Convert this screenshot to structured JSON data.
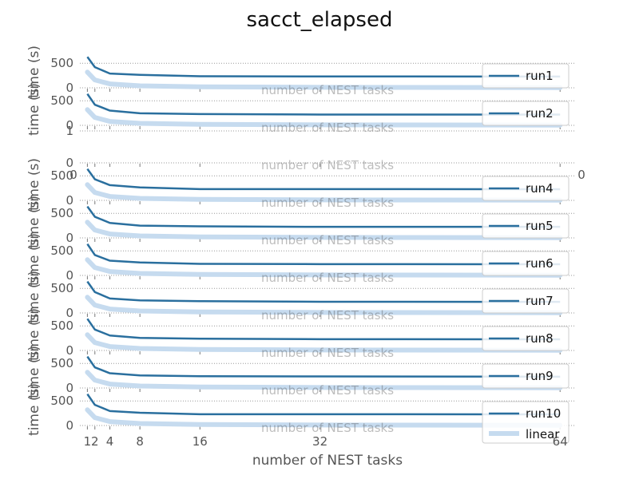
{
  "chart_data": {
    "type": "line",
    "title": "sacct_elapsed",
    "xlabel": "number of NEST tasks",
    "ylabel": "time (s)",
    "x_ticks": [
      1,
      2,
      4,
      8,
      16,
      32,
      64
    ],
    "x": [
      1,
      2,
      4,
      8,
      16,
      32,
      64
    ],
    "grid": true,
    "legend_position": "right",
    "colors": {
      "run": "#2a6f9e",
      "linear": "#c6dbef",
      "grid": "#999999",
      "axis": "#777777",
      "text": "#555555"
    },
    "panels": [
      {
        "name": "run1",
        "yticks": [
          0,
          500
        ],
        "ylim": [
          0,
          650
        ],
        "values": [
          630,
          420,
          290,
          265,
          235,
          232,
          230
        ]
      },
      {
        "name": "run2",
        "yticks": [
          0,
          500
        ],
        "ylim": [
          0,
          650
        ],
        "values": [
          640,
          420,
          300,
          245,
          230,
          220,
          220
        ]
      },
      {
        "name": "",
        "yticks": [
          0,
          1
        ],
        "ylim": [
          0,
          1
        ],
        "values": []
      },
      {
        "name": "run4",
        "yticks": [
          0,
          500
        ],
        "ylim": [
          0,
          650
        ],
        "values": [
          640,
          430,
          310,
          265,
          230,
          230,
          228
        ]
      },
      {
        "name": "run5",
        "yticks": [
          0,
          500
        ],
        "ylim": [
          0,
          650
        ],
        "values": [
          640,
          430,
          305,
          250,
          235,
          225,
          225
        ]
      },
      {
        "name": "run6",
        "yticks": [
          0,
          500
        ],
        "ylim": [
          0,
          650
        ],
        "values": [
          640,
          415,
          300,
          265,
          235,
          230,
          228
        ]
      },
      {
        "name": "run7",
        "yticks": [
          0,
          500
        ],
        "ylim": [
          0,
          650
        ],
        "values": [
          640,
          425,
          295,
          255,
          240,
          228,
          225
        ]
      },
      {
        "name": "run8",
        "yticks": [
          0,
          500
        ],
        "ylim": [
          0,
          650
        ],
        "values": [
          645,
          425,
          305,
          255,
          240,
          230,
          228
        ]
      },
      {
        "name": "run9",
        "yticks": [
          0,
          500
        ],
        "ylim": [
          0,
          650
        ],
        "values": [
          640,
          420,
          300,
          255,
          240,
          235,
          230
        ]
      },
      {
        "name": "run10",
        "yticks": [
          0,
          500
        ],
        "ylim": [
          0,
          650
        ],
        "values": [
          640,
          420,
          295,
          260,
          230,
          230,
          228
        ]
      }
    ],
    "linear_values": [
      320,
      160,
      80,
      40,
      20,
      10,
      5
    ],
    "legend_linear": "linear",
    "blank_panel_x_ticks": [
      "0",
      "0"
    ]
  }
}
